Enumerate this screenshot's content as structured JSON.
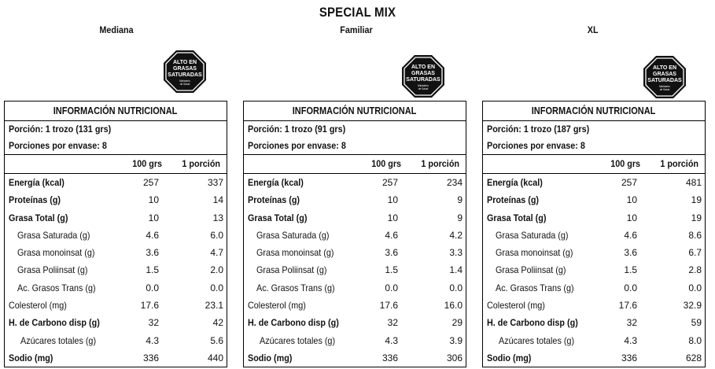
{
  "title": "SPECIAL MIX",
  "seal": {
    "line1": "ALTO EN",
    "line2": "GRASAS",
    "line3": "SATURADAS",
    "small1": "Ministerio",
    "small2": "de Salud"
  },
  "table_header": "INFORMACIÓN NUTRICIONAL",
  "col_100": "100 grs",
  "col_portion": "1 porción",
  "portions_label": "Porciones por envase: 8",
  "row_labels": [
    "Energía (kcal)",
    "Proteínas (g)",
    "Grasa Total (g)",
    "Grasa Saturada (g)",
    "Grasa monoinsat (g)",
    "Grasa Poliinsat (g)",
    "Ac. Grasos Trans (g)",
    "Colesterol (mg)",
    "H. de Carbono disp (g)",
    "Azúcares totales (g)",
    "Sodio (mg)"
  ],
  "per100": [
    "257",
    "10",
    "10",
    "4.6",
    "3.6",
    "1.5",
    "0.0",
    "17.6",
    "32",
    "4.3",
    "336"
  ],
  "panels": [
    {
      "size": "Mediana",
      "portion": "Porción: 1 trozo (131 grs)",
      "perPortion": [
        "337",
        "14",
        "13",
        "6.0",
        "4.7",
        "2.0",
        "0.0",
        "23.1",
        "42",
        "5.6",
        "440"
      ]
    },
    {
      "size": "Familiar",
      "portion": "Porción: 1 trozo (91 grs)",
      "perPortion": [
        "234",
        "9",
        "9",
        "4.2",
        "3.3",
        "1.4",
        "0.0",
        "16.0",
        "29",
        "3.9",
        "306"
      ]
    },
    {
      "size": "XL",
      "portion": "Porción: 1 trozo (187 grs)",
      "perPortion": [
        "481",
        "19",
        "19",
        "8.6",
        "6.7",
        "2.8",
        "0.0",
        "32.9",
        "59",
        "8.0",
        "628"
      ]
    }
  ]
}
